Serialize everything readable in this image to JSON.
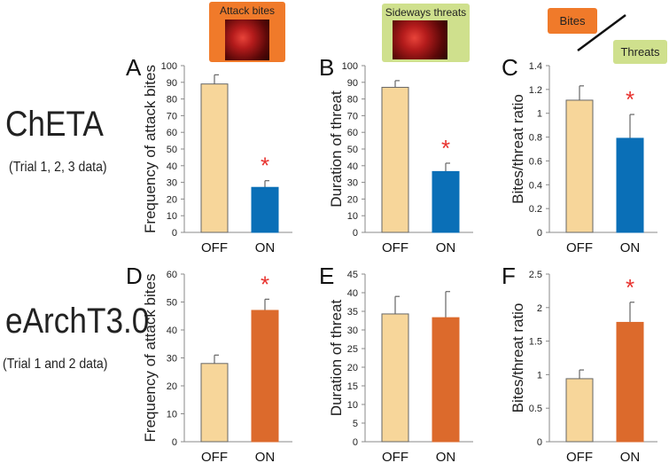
{
  "rows": [
    {
      "title": "ChETA",
      "subtitle": "(Trial 1, 2, 3 data)"
    },
    {
      "title": "eArchT3.0",
      "subtitle": "(Trial 1 and 2 data)"
    }
  ],
  "headers": {
    "attack": "Attack bites",
    "sideways": "Sideways threats",
    "bites": "Bites",
    "threats": "Threats"
  },
  "colors": {
    "off": "#f7d69a",
    "on_cheta": "#0a6fb7",
    "on_earch": "#dc6a2c",
    "asterisk": "#e8322e",
    "orange_box": "#f07a2a",
    "green_box": "#cfe08d"
  },
  "chart_data": [
    {
      "type": "bar",
      "panel": "A",
      "ylabel": "Frequency of attack bites",
      "categories": [
        "OFF",
        "ON"
      ],
      "values": [
        89,
        27
      ],
      "errors": [
        5.5,
        4
      ],
      "ylim": [
        0,
        100
      ],
      "ticks": [
        0,
        10,
        20,
        30,
        40,
        50,
        60,
        70,
        80,
        90,
        100
      ],
      "tick_labels": [
        "0",
        "10",
        "20",
        "30",
        "40",
        "50",
        "60",
        "70",
        "80",
        "90",
        "100"
      ],
      "significant": [
        false,
        true
      ],
      "asterisk": "*",
      "on_color": "on_cheta"
    },
    {
      "type": "bar",
      "panel": "B",
      "ylabel": "Duration of threat",
      "categories": [
        "OFF",
        "ON"
      ],
      "values": [
        87,
        36.5
      ],
      "errors": [
        4,
        5
      ],
      "ylim": [
        0,
        100
      ],
      "ticks": [
        0,
        10,
        20,
        30,
        40,
        50,
        60,
        70,
        80,
        90,
        100
      ],
      "tick_labels": [
        "0",
        "10",
        "20",
        "30",
        "40",
        "50",
        "60",
        "70",
        "80",
        "90",
        "100"
      ],
      "significant": [
        false,
        true
      ],
      "asterisk": "*",
      "on_color": "on_cheta"
    },
    {
      "type": "bar",
      "panel": "C",
      "ylabel": "Bites/threat ratio",
      "categories": [
        "OFF",
        "ON"
      ],
      "values": [
        1.11,
        0.79
      ],
      "errors": [
        0.12,
        0.2
      ],
      "ylim": [
        0,
        1.4
      ],
      "ticks": [
        0,
        0.2,
        0.4,
        0.6,
        0.8,
        1,
        1.2,
        1.4
      ],
      "tick_labels": [
        "0",
        "0.2",
        "0.4",
        "0.6",
        "0.8",
        "1",
        "1.2",
        "1.4"
      ],
      "significant": [
        false,
        true
      ],
      "asterisk": "*",
      "on_color": "on_cheta"
    },
    {
      "type": "bar",
      "panel": "D",
      "ylabel": "Frequency of attack bites",
      "categories": [
        "OFF",
        "ON"
      ],
      "values": [
        28,
        47
      ],
      "errors": [
        3,
        4
      ],
      "ylim": [
        0,
        60
      ],
      "ticks": [
        0,
        10,
        20,
        30,
        40,
        50,
        60
      ],
      "tick_labels": [
        "0",
        "10",
        "20",
        "30",
        "40",
        "50",
        "60"
      ],
      "significant": [
        false,
        true
      ],
      "asterisk": "*",
      "on_color": "on_earch"
    },
    {
      "type": "bar",
      "panel": "E",
      "ylabel": "Duration of threat",
      "categories": [
        "OFF",
        "ON"
      ],
      "values": [
        34.3,
        33.3
      ],
      "errors": [
        4.7,
        7
      ],
      "ylim": [
        0,
        45
      ],
      "ticks": [
        0,
        5,
        10,
        15,
        20,
        25,
        30,
        35,
        40,
        45
      ],
      "tick_labels": [
        "0",
        "5",
        "10",
        "15",
        "20",
        "25",
        "30",
        "35",
        "40",
        "45"
      ],
      "significant": [
        false,
        false
      ],
      "asterisk": "*",
      "on_color": "on_earch"
    },
    {
      "type": "bar",
      "panel": "F",
      "ylabel": "Bites/threat ratio",
      "categories": [
        "OFF",
        "ON"
      ],
      "values": [
        0.94,
        1.78
      ],
      "errors": [
        0.13,
        0.3
      ],
      "ylim": [
        0,
        2.5
      ],
      "ticks": [
        0,
        0.5,
        1,
        1.5,
        2,
        2.5
      ],
      "tick_labels": [
        "0",
        "0.5",
        "1",
        "1.5",
        "2",
        "2.5"
      ],
      "significant": [
        false,
        true
      ],
      "asterisk": "*",
      "on_color": "on_earch"
    }
  ]
}
